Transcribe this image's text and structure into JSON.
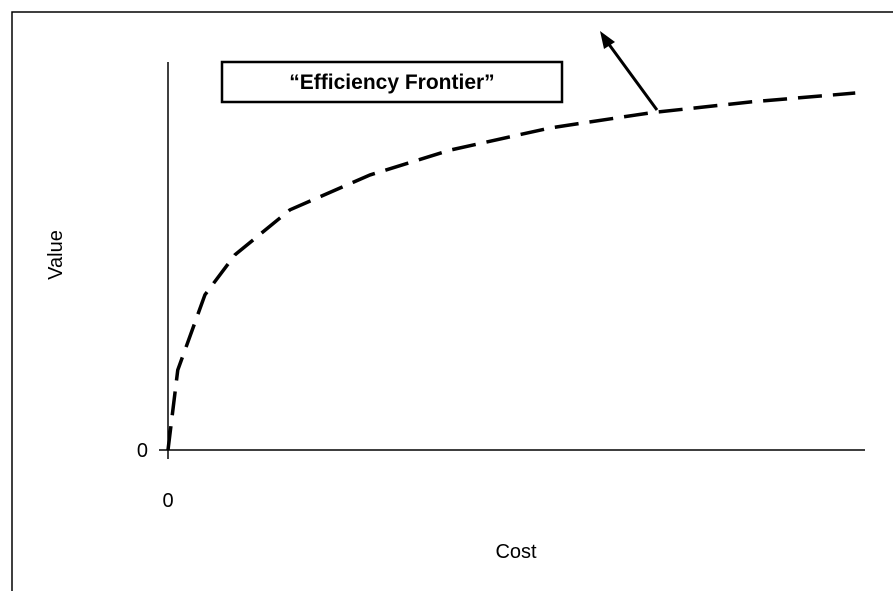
{
  "chart_data": {
    "type": "line",
    "annotation": "“Efficiency Frontier”",
    "xlabel": "Cost",
    "ylabel": "Value",
    "x": [
      0,
      1.4,
      5.3,
      9.6,
      17.5,
      29,
      40.5,
      54.8,
      69.2,
      83.5,
      98.6
    ],
    "values": [
      0,
      20.6,
      40,
      50.3,
      61.9,
      70.9,
      77.3,
      83,
      86.9,
      89.7,
      92
    ],
    "color": "#000000",
    "dashed": true,
    "xlim": [
      0,
      100
    ],
    "ylim": [
      0,
      100
    ],
    "xticks": [
      0
    ],
    "yticks": [
      0
    ]
  }
}
